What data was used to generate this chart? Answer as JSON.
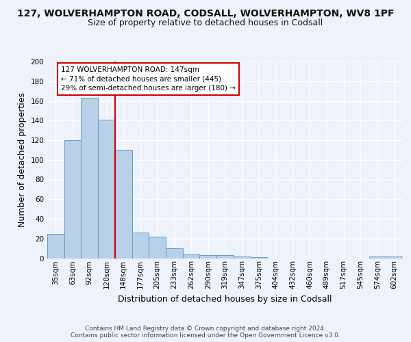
{
  "title1": "127, WOLVERHAMPTON ROAD, CODSALL, WOLVERHAMPTON, WV8 1PF",
  "title2": "Size of property relative to detached houses in Codsall",
  "xlabel": "Distribution of detached houses by size in Codsall",
  "ylabel": "Number of detached properties",
  "categories": [
    "35sqm",
    "63sqm",
    "92sqm",
    "120sqm",
    "148sqm",
    "177sqm",
    "205sqm",
    "233sqm",
    "262sqm",
    "290sqm",
    "319sqm",
    "347sqm",
    "375sqm",
    "404sqm",
    "432sqm",
    "460sqm",
    "489sqm",
    "517sqm",
    "545sqm",
    "574sqm",
    "602sqm"
  ],
  "values": [
    25,
    120,
    163,
    141,
    110,
    26,
    22,
    10,
    4,
    3,
    3,
    2,
    1,
    0,
    0,
    0,
    0,
    0,
    0,
    2,
    2
  ],
  "bar_color": "#b8d0e8",
  "bar_edge_color": "#6699cc",
  "highlight_line_color": "#cc0000",
  "annotation_text": "127 WOLVERHAMPTON ROAD: 147sqm\n← 71% of detached houses are smaller (445)\n29% of semi-detached houses are larger (180) →",
  "annotation_box_color": "#ffffff",
  "annotation_box_edge": "#cc0000",
  "footer": "Contains HM Land Registry data © Crown copyright and database right 2024.\nContains public sector information licensed under the Open Government Licence v3.0.",
  "ylim_max": 200,
  "yticks": [
    0,
    20,
    40,
    60,
    80,
    100,
    120,
    140,
    160,
    180,
    200
  ],
  "background_color": "#eef2fa",
  "grid_color": "#ffffff",
  "title1_fontsize": 10,
  "title2_fontsize": 9,
  "axis_label_fontsize": 9,
  "tick_fontsize": 7.5,
  "footer_fontsize": 6.5
}
